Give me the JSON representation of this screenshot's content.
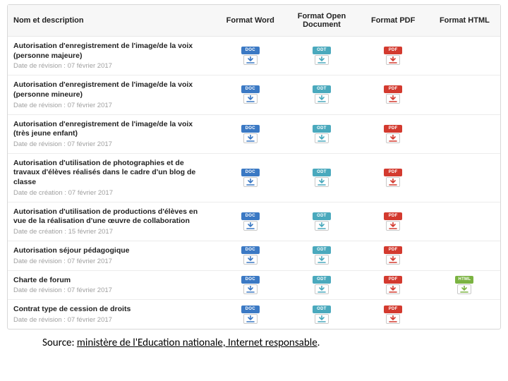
{
  "colors": {
    "doc": "#3b79c4",
    "odt": "#4aa9bd",
    "pdf": "#d33a2f",
    "html": "#7bb342",
    "arrow_doc": "#3b79c4",
    "arrow_odt": "#4aa9bd",
    "arrow_pdf": "#d33a2f",
    "arrow_html": "#7bb342"
  },
  "icon_labels": {
    "doc": "DOC",
    "odt": "ODT",
    "pdf": "PDF",
    "html": "HTML"
  },
  "headers": {
    "name": "Nom et description",
    "word": "Format Word",
    "od": "Format Open Document",
    "pdf": "Format PDF",
    "html": "Format HTML"
  },
  "rows": [
    {
      "title": "Autorisation d'enregistrement de l'image/de la voix (personne majeure)",
      "date": "Date de révision : 07 février 2017",
      "formats": [
        "doc",
        "odt",
        "pdf"
      ]
    },
    {
      "title": "Autorisation d'enregistrement de l'image/de la voix (personne mineure)",
      "date": "Date de révision : 07 février 2017",
      "formats": [
        "doc",
        "odt",
        "pdf"
      ]
    },
    {
      "title": "Autorisation d'enregistrement de l'image/de la voix (très jeune enfant)",
      "date": "Date de révision : 07 février 2017",
      "formats": [
        "doc",
        "odt",
        "pdf"
      ]
    },
    {
      "title": "Autorisation d'utilisation de photographies et de travaux d'élèves réalisés dans le cadre d'un blog de classe",
      "date": "Date de création : 07 février 2017",
      "formats": [
        "doc",
        "odt",
        "pdf"
      ]
    },
    {
      "title": "Autorisation d'utilisation de productions d'élèves en vue de la réalisation d'une œuvre de collaboration",
      "date": "Date de création : 15 février 2017",
      "formats": [
        "doc",
        "odt",
        "pdf"
      ]
    },
    {
      "title": "Autorisation séjour pédagogique",
      "date": "Date de révision : 07 février 2017",
      "formats": [
        "doc",
        "odt",
        "pdf"
      ]
    },
    {
      "title": "Charte de forum",
      "date": "Date de révision : 07 février 2017",
      "formats": [
        "doc",
        "odt",
        "pdf",
        "html"
      ]
    },
    {
      "title": "Contrat type de cession de droits",
      "date": "Date de révision : 07 février 2017",
      "formats": [
        "doc",
        "odt",
        "pdf"
      ]
    }
  ],
  "source": {
    "prefix": "Source: ",
    "link_text": "ministère de l'Education nationale, Internet responsable",
    "suffix": "."
  }
}
